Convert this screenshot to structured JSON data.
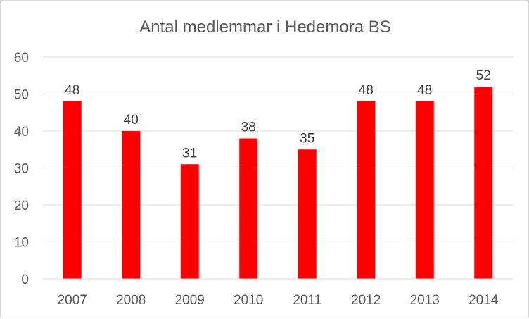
{
  "chart_data": {
    "type": "bar",
    "title": "Antal medlemmar i Hedemora BS",
    "xlabel": "",
    "ylabel": "",
    "categories": [
      "2007",
      "2008",
      "2009",
      "2010",
      "2011",
      "2012",
      "2013",
      "2014"
    ],
    "values": [
      48,
      40,
      31,
      38,
      35,
      48,
      48,
      52
    ],
    "ylim": [
      0,
      60
    ],
    "yticks": [
      0,
      10,
      20,
      30,
      40,
      50,
      60
    ],
    "grid": true,
    "legend": "none",
    "data_labels": true,
    "bar_color": "#ff0000",
    "grid_color": "#d9d9d9",
    "text_color": "#595959"
  }
}
